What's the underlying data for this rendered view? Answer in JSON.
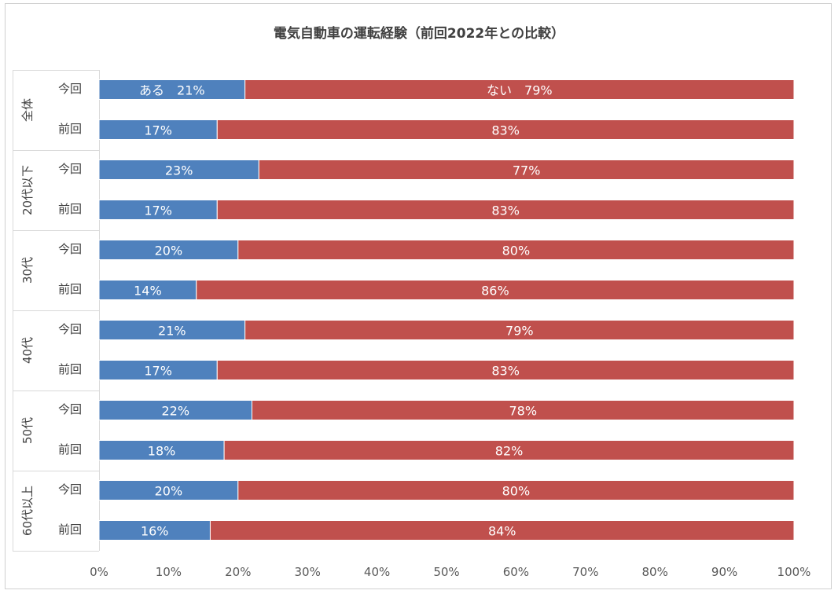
{
  "chart_data": {
    "type": "bar",
    "orientation": "horizontal",
    "stacked": "percent",
    "title": "電気自動車の運転経験（前回2022年との比較）",
    "groups": [
      {
        "label": "全体",
        "rows": [
          {
            "label": "今回",
            "values": [
              21,
              79
            ],
            "value_labels": [
              "ある　21%",
              "ない　79%"
            ]
          },
          {
            "label": "前回",
            "values": [
              17,
              83
            ],
            "value_labels": [
              "17%",
              "83%"
            ]
          }
        ]
      },
      {
        "label": "20代以下",
        "rows": [
          {
            "label": "今回",
            "values": [
              23,
              77
            ],
            "value_labels": [
              "23%",
              "77%"
            ]
          },
          {
            "label": "前回",
            "values": [
              17,
              83
            ],
            "value_labels": [
              "17%",
              "83%"
            ]
          }
        ]
      },
      {
        "label": "30代",
        "rows": [
          {
            "label": "今回",
            "values": [
              20,
              80
            ],
            "value_labels": [
              "20%",
              "80%"
            ]
          },
          {
            "label": "前回",
            "values": [
              14,
              86
            ],
            "value_labels": [
              "14%",
              "86%"
            ]
          }
        ]
      },
      {
        "label": "40代",
        "rows": [
          {
            "label": "今回",
            "values": [
              21,
              79
            ],
            "value_labels": [
              "21%",
              "79%"
            ]
          },
          {
            "label": "前回",
            "values": [
              17,
              83
            ],
            "value_labels": [
              "17%",
              "83%"
            ]
          }
        ]
      },
      {
        "label": "50代",
        "rows": [
          {
            "label": "今回",
            "values": [
              22,
              78
            ],
            "value_labels": [
              "22%",
              "78%"
            ]
          },
          {
            "label": "前回",
            "values": [
              18,
              82
            ],
            "value_labels": [
              "18%",
              "82%"
            ]
          }
        ]
      },
      {
        "label": "60代以上",
        "rows": [
          {
            "label": "今回",
            "values": [
              20,
              80
            ],
            "value_labels": [
              "20%",
              "80%"
            ]
          },
          {
            "label": "前回",
            "values": [
              16,
              84
            ],
            "value_labels": [
              "16%",
              "84%"
            ]
          }
        ]
      }
    ],
    "series_colors": [
      "#4f81bd",
      "#c0504d"
    ],
    "xlim": [
      0,
      100
    ],
    "x_ticks": [
      "0%",
      "10%",
      "20%",
      "30%",
      "40%",
      "50%",
      "60%",
      "70%",
      "80%",
      "90%",
      "100%"
    ],
    "grid": false
  }
}
